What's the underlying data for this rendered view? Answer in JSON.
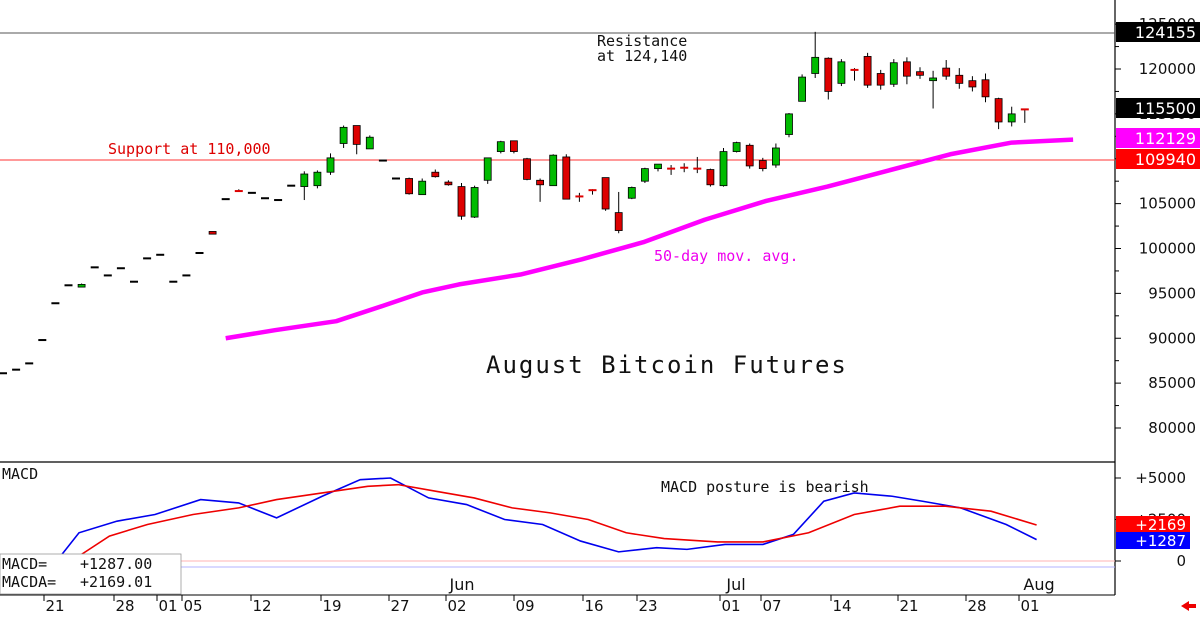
{
  "chart_data": {
    "type": "candlestick",
    "title": "August Bitcoin Futures",
    "y_ticks": [
      "125000",
      "120000",
      "115000",
      "110000",
      "105000",
      "100000",
      "95000",
      "90000",
      "85000",
      "80000"
    ],
    "x_month_labels": [
      "Jun",
      "Jul",
      "Aug"
    ],
    "x_day_labels": [
      "21",
      "28",
      "01",
      "05",
      "12",
      "19",
      "27",
      "02",
      "09",
      "16",
      "23",
      "01",
      "07",
      "14",
      "21",
      "28",
      "01"
    ],
    "annotations": {
      "resistance_line1": "Resistance",
      "resistance_line2": "at 124,140",
      "support": "Support at 110,000",
      "ma_label": "50-day mov. avg.",
      "macd_note": "MACD posture is bearish"
    },
    "levels": {
      "resistance": 124140,
      "support": 110000
    },
    "price_badges": [
      {
        "text": "124155",
        "value": 124155,
        "bg": "#000000",
        "fg": "#ffffff"
      },
      {
        "text": "115500",
        "value": 115500,
        "bg": "#000000",
        "fg": "#ffffff"
      },
      {
        "text": "112129",
        "value": 112129,
        "bg": "#ff00ff",
        "fg": "#ffffff"
      },
      {
        "text": "109940",
        "value": 109940,
        "bg": "#ff0000",
        "fg": "#ffffff"
      }
    ],
    "candles": [
      {
        "o": 86100,
        "h": 86100,
        "l": 86100,
        "c": 86100
      },
      {
        "o": 86500,
        "h": 86500,
        "l": 86500,
        "c": 86500
      },
      {
        "o": 87200,
        "h": 87200,
        "l": 87200,
        "c": 87200
      },
      {
        "o": 89800,
        "h": 89800,
        "l": 89800,
        "c": 89800
      },
      {
        "o": 93900,
        "h": 93900,
        "l": 93900,
        "c": 93900
      },
      {
        "o": 95900,
        "h": 95900,
        "l": 95900,
        "c": 95900
      },
      {
        "o": 95700,
        "h": 96100,
        "l": 95700,
        "c": 96000
      },
      {
        "o": 97900,
        "h": 97900,
        "l": 97900,
        "c": 97900
      },
      {
        "o": 97000,
        "h": 97000,
        "l": 97000,
        "c": 97000
      },
      {
        "o": 97800,
        "h": 97800,
        "l": 97800,
        "c": 97800
      },
      {
        "o": 96300,
        "h": 96300,
        "l": 96300,
        "c": 96300
      },
      {
        "o": 98900,
        "h": 98900,
        "l": 98900,
        "c": 98900
      },
      {
        "o": 99300,
        "h": 99300,
        "l": 99300,
        "c": 99300
      },
      {
        "o": 96300,
        "h": 96300,
        "l": 96300,
        "c": 96300
      },
      {
        "o": 97000,
        "h": 97000,
        "l": 97000,
        "c": 97000
      },
      {
        "o": 99500,
        "h": 99500,
        "l": 99500,
        "c": 99500
      },
      {
        "o": 101900,
        "h": 101900,
        "l": 101600,
        "c": 101600
      },
      {
        "o": 105500,
        "h": 105500,
        "l": 105500,
        "c": 105500
      },
      {
        "o": 106600,
        "h": 106600,
        "l": 106400,
        "c": 106400
      },
      {
        "o": 106200,
        "h": 106200,
        "l": 106200,
        "c": 106200
      },
      {
        "o": 105600,
        "h": 105600,
        "l": 105600,
        "c": 105600
      },
      {
        "o": 105400,
        "h": 105400,
        "l": 105400,
        "c": 105400
      },
      {
        "o": 107000,
        "h": 107000,
        "l": 107000,
        "c": 107000
      },
      {
        "o": 106900,
        "h": 108600,
        "l": 105400,
        "c": 108300
      },
      {
        "o": 107000,
        "h": 108700,
        "l": 106700,
        "c": 108500
      },
      {
        "o": 108500,
        "h": 110600,
        "l": 108200,
        "c": 110100
      },
      {
        "o": 111700,
        "h": 113700,
        "l": 111200,
        "c": 113500
      },
      {
        "o": 113700,
        "h": 113700,
        "l": 110500,
        "c": 111600
      },
      {
        "o": 111100,
        "h": 112600,
        "l": 111100,
        "c": 112400
      },
      {
        "o": 109800,
        "h": 109800,
        "l": 109800,
        "c": 109800
      },
      {
        "o": 107800,
        "h": 107800,
        "l": 107800,
        "c": 107800
      },
      {
        "o": 107800,
        "h": 107900,
        "l": 106000,
        "c": 106100
      },
      {
        "o": 106000,
        "h": 107800,
        "l": 106000,
        "c": 107500
      },
      {
        "o": 108500,
        "h": 108800,
        "l": 107900,
        "c": 108000
      },
      {
        "o": 107400,
        "h": 107600,
        "l": 107000,
        "c": 107100
      },
      {
        "o": 106900,
        "h": 107300,
        "l": 103200,
        "c": 103600
      },
      {
        "o": 103500,
        "h": 107000,
        "l": 103400,
        "c": 106800
      },
      {
        "o": 107600,
        "h": 110100,
        "l": 107200,
        "c": 110100
      },
      {
        "o": 110800,
        "h": 112000,
        "l": 110600,
        "c": 111900
      },
      {
        "o": 112000,
        "h": 112000,
        "l": 110600,
        "c": 110800
      },
      {
        "o": 110000,
        "h": 110100,
        "l": 107600,
        "c": 107700
      },
      {
        "o": 107600,
        "h": 107800,
        "l": 105200,
        "c": 107100
      },
      {
        "o": 107000,
        "h": 110500,
        "l": 107000,
        "c": 110400
      },
      {
        "o": 110200,
        "h": 110500,
        "l": 105500,
        "c": 105500
      },
      {
        "o": 105800,
        "h": 106200,
        "l": 105200,
        "c": 105800
      },
      {
        "o": 106500,
        "h": 106600,
        "l": 106000,
        "c": 106500
      },
      {
        "o": 107900,
        "h": 107900,
        "l": 104200,
        "c": 104400
      },
      {
        "o": 104000,
        "h": 106300,
        "l": 101700,
        "c": 102000
      },
      {
        "o": 105600,
        "h": 106900,
        "l": 105500,
        "c": 106800
      },
      {
        "o": 107500,
        "h": 109000,
        "l": 107300,
        "c": 108900
      },
      {
        "o": 108900,
        "h": 109400,
        "l": 108600,
        "c": 109400
      },
      {
        "o": 108900,
        "h": 109300,
        "l": 108200,
        "c": 108900
      },
      {
        "o": 109000,
        "h": 109500,
        "l": 108500,
        "c": 109000
      },
      {
        "o": 108800,
        "h": 110200,
        "l": 108400,
        "c": 108900
      },
      {
        "o": 108800,
        "h": 108900,
        "l": 106900,
        "c": 107100
      },
      {
        "o": 107000,
        "h": 111200,
        "l": 106900,
        "c": 110800
      },
      {
        "o": 110800,
        "h": 111900,
        "l": 110700,
        "c": 111800
      },
      {
        "o": 111500,
        "h": 111700,
        "l": 108900,
        "c": 109200
      },
      {
        "o": 109800,
        "h": 110100,
        "l": 108600,
        "c": 108900
      },
      {
        "o": 109300,
        "h": 111700,
        "l": 109000,
        "c": 111200
      },
      {
        "o": 112700,
        "h": 115100,
        "l": 112400,
        "c": 115000
      },
      {
        "o": 116400,
        "h": 119400,
        "l": 116400,
        "c": 119100
      },
      {
        "o": 119500,
        "h": 124140,
        "l": 119000,
        "c": 121300
      },
      {
        "o": 121200,
        "h": 121300,
        "l": 116600,
        "c": 117500
      },
      {
        "o": 118400,
        "h": 121100,
        "l": 118100,
        "c": 120800
      },
      {
        "o": 120000,
        "h": 120100,
        "l": 118700,
        "c": 119900
      },
      {
        "o": 121400,
        "h": 121800,
        "l": 117900,
        "c": 118200
      },
      {
        "o": 119500,
        "h": 119900,
        "l": 117700,
        "c": 118200
      },
      {
        "o": 118300,
        "h": 121100,
        "l": 118000,
        "c": 120700
      },
      {
        "o": 120800,
        "h": 121300,
        "l": 118300,
        "c": 119200
      },
      {
        "o": 119700,
        "h": 120200,
        "l": 118900,
        "c": 119300
      },
      {
        "o": 118700,
        "h": 119800,
        "l": 115600,
        "c": 119000
      },
      {
        "o": 120100,
        "h": 121000,
        "l": 118800,
        "c": 119200
      },
      {
        "o": 119300,
        "h": 120100,
        "l": 117800,
        "c": 118400
      },
      {
        "o": 118700,
        "h": 119200,
        "l": 117500,
        "c": 118000
      },
      {
        "o": 118800,
        "h": 119500,
        "l": 116300,
        "c": 116900
      },
      {
        "o": 116700,
        "h": 116800,
        "l": 113300,
        "c": 114100
      },
      {
        "o": 114100,
        "h": 115800,
        "l": 113600,
        "c": 115000
      },
      {
        "o": 115500,
        "h": 115600,
        "l": 114000,
        "c": 115500
      }
    ],
    "ma50": [
      {
        "i": 16,
        "v": 90000
      },
      {
        "i": 20,
        "v": 90900
      },
      {
        "i": 25,
        "v": 91900
      },
      {
        "i": 29,
        "v": 93700
      },
      {
        "i": 32,
        "v": 95100
      },
      {
        "i": 35,
        "v": 96000
      },
      {
        "i": 40,
        "v": 97100
      },
      {
        "i": 45,
        "v": 98800
      },
      {
        "i": 50,
        "v": 100700
      },
      {
        "i": 55,
        "v": 103200
      },
      {
        "i": 60,
        "v": 105300
      },
      {
        "i": 65,
        "v": 106900
      },
      {
        "i": 70,
        "v": 108700
      },
      {
        "i": 75,
        "v": 110500
      },
      {
        "i": 80,
        "v": 111800
      },
      {
        "i": 85,
        "v": 112129
      }
    ],
    "macd": {
      "label": "MACD",
      "y_ticks": [
        "+5000",
        "+2500",
        "0"
      ],
      "macd_value_label": "MACD=",
      "macd_value": "+1287.00",
      "macda_value_label": "MACDA=",
      "macda_value": "+2169.01",
      "badges": [
        {
          "text": "+2169",
          "value": 2169,
          "bg": "#ff0000"
        },
        {
          "text": "+1287",
          "value": 1287,
          "bg": "#0000ff"
        }
      ],
      "macd_line": [
        {
          "i": 5,
          "v": -1200
        },
        {
          "i": 10,
          "v": 1700
        },
        {
          "i": 15,
          "v": 2400
        },
        {
          "i": 20,
          "v": 2800
        },
        {
          "i": 26,
          "v": 3700
        },
        {
          "i": 31,
          "v": 3500
        },
        {
          "i": 36,
          "v": 2600
        },
        {
          "i": 42,
          "v": 3900
        },
        {
          "i": 47,
          "v": 4900
        },
        {
          "i": 51,
          "v": 5000
        },
        {
          "i": 56,
          "v": 3800
        },
        {
          "i": 61,
          "v": 3400
        },
        {
          "i": 66,
          "v": 2500
        },
        {
          "i": 71,
          "v": 2200
        },
        {
          "i": 76,
          "v": 1200
        },
        {
          "i": 81,
          "v": 550
        },
        {
          "i": 86,
          "v": 800
        },
        {
          "i": 90,
          "v": 700
        },
        {
          "i": 95,
          "v": 1000
        },
        {
          "i": 100,
          "v": 1000
        },
        {
          "i": 104,
          "v": 1600
        },
        {
          "i": 108,
          "v": 3600
        },
        {
          "i": 112,
          "v": 4100
        },
        {
          "i": 117,
          "v": 3900
        },
        {
          "i": 121,
          "v": 3600
        },
        {
          "i": 126,
          "v": 3200
        },
        {
          "i": 132,
          "v": 2200
        },
        {
          "i": 136,
          "v": 1287
        }
      ],
      "signal_line": [
        {
          "i": 9,
          "v": 0
        },
        {
          "i": 14,
          "v": 1500
        },
        {
          "i": 19,
          "v": 2200
        },
        {
          "i": 25,
          "v": 2800
        },
        {
          "i": 31,
          "v": 3200
        },
        {
          "i": 36,
          "v": 3700
        },
        {
          "i": 42,
          "v": 4100
        },
        {
          "i": 48,
          "v": 4500
        },
        {
          "i": 52,
          "v": 4600
        },
        {
          "i": 57,
          "v": 4200
        },
        {
          "i": 62,
          "v": 3800
        },
        {
          "i": 67,
          "v": 3200
        },
        {
          "i": 72,
          "v": 2900
        },
        {
          "i": 77,
          "v": 2500
        },
        {
          "i": 82,
          "v": 1700
        },
        {
          "i": 87,
          "v": 1350
        },
        {
          "i": 94,
          "v": 1150
        },
        {
          "i": 100,
          "v": 1150
        },
        {
          "i": 106,
          "v": 1700
        },
        {
          "i": 112,
          "v": 2800
        },
        {
          "i": 118,
          "v": 3300
        },
        {
          "i": 124,
          "v": 3300
        },
        {
          "i": 130,
          "v": 3000
        },
        {
          "i": 136,
          "v": 2169
        }
      ]
    }
  }
}
